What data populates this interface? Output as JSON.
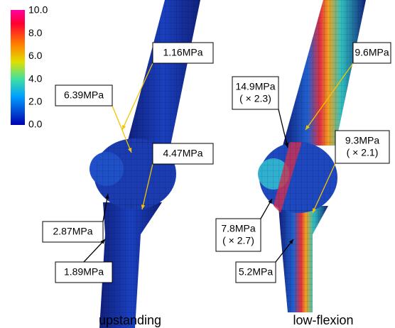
{
  "colorbar": {
    "ticks": [
      "10.0",
      "8.0",
      "6.0",
      "4.0",
      "2.0",
      "0.0"
    ]
  },
  "panels": [
    {
      "caption": "upstanding",
      "annotations": [
        {
          "lines": [
            "1.16MPa"
          ]
        },
        {
          "lines": [
            "6.39MPa"
          ]
        },
        {
          "lines": [
            "4.47MPa"
          ]
        },
        {
          "lines": [
            "2.87MPa"
          ]
        },
        {
          "lines": [
            "1.89MPa"
          ]
        }
      ]
    },
    {
      "caption": "low-flexion",
      "annotations": [
        {
          "lines": [
            "9.6MPa"
          ]
        },
        {
          "lines": [
            "14.9MPa",
            "( × 2.3)"
          ]
        },
        {
          "lines": [
            "9.3MPa",
            "( × 2.1)"
          ]
        },
        {
          "lines": [
            "7.8MPa",
            "( × 2.7)"
          ]
        },
        {
          "lines": [
            "5.2MPa"
          ]
        }
      ]
    }
  ]
}
